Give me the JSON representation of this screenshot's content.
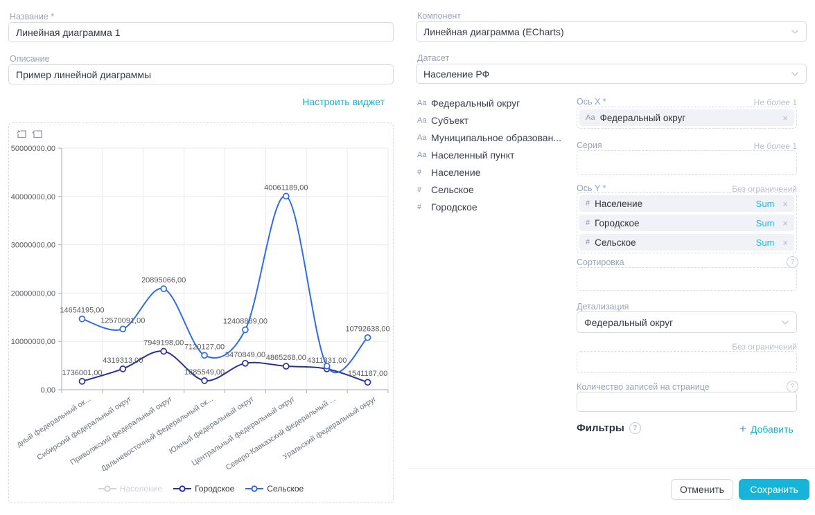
{
  "accent": "#17b3d9",
  "left": {
    "name_label": "Название *",
    "name_value": "Линейная диаграмма 1",
    "description_label": "Описание",
    "description_value": "Пример линейной диаграммы",
    "configure_link": "Настроить виджет"
  },
  "right": {
    "component_label": "Компонент",
    "component_value": "Линейная диаграмма (ECharts)",
    "dataset_label": "Датасет",
    "dataset_value": "Население РФ",
    "fields": [
      {
        "type": "Аа",
        "label": "Федеральный округ"
      },
      {
        "type": "Аа",
        "label": "Субъект"
      },
      {
        "type": "Аа",
        "label": "Муниципальное образован..."
      },
      {
        "type": "Аа",
        "label": "Населенный пункт"
      },
      {
        "type": "#",
        "label": "Население"
      },
      {
        "type": "#",
        "label": "Сельское"
      },
      {
        "type": "#",
        "label": "Городское"
      }
    ],
    "axis_x": {
      "label": "Ось X *",
      "limit": "Не более 1",
      "chips": [
        {
          "type": "Аа",
          "label": "Федеральный округ"
        }
      ]
    },
    "series_slot": {
      "label": "Серия",
      "limit": "Не более 1"
    },
    "axis_y": {
      "label": "Ось Y *",
      "limit": "Без ограничений",
      "chips": [
        {
          "type": "#",
          "label": "Население",
          "agg": "Sum"
        },
        {
          "type": "#",
          "label": "Городское",
          "agg": "Sum"
        },
        {
          "type": "#",
          "label": "Сельское",
          "agg": "Sum"
        }
      ]
    },
    "sorting_label": "Сортировка",
    "detail_label": "Детализация",
    "detail_value": "Федеральный округ",
    "limit_unbounded": "Без ограничений",
    "page_size_label": "Количество записей на странице",
    "filters_label": "Фильтры",
    "add_label": "Добавить",
    "add_plus": "+"
  },
  "footer": {
    "cancel": "Отменить",
    "save": "Сохранить"
  },
  "chart_data": {
    "type": "line",
    "smooth": true,
    "grid": true,
    "legend_position": "bottom",
    "toolbox_icons": [
      "box-zoom-icon",
      "restore-icon"
    ],
    "categories": [
      "дный федеральный ок...",
      "Сибирский федеральный округ",
      "Приволжский федеральный округ",
      "Дальневосточный федеральный ок...",
      "Южный федеральный округ",
      "Центральный федеральный округ",
      "Северо-Кавказский федеральный ...",
      "Уральский федеральный округ"
    ],
    "ylim": [
      0,
      50000000
    ],
    "y_ticks": [
      "50000000,00",
      "40000000,00",
      "30000000,00",
      "20000000,00",
      "10000000,00",
      "0,00"
    ],
    "label_suffix": ",00",
    "series": [
      {
        "name": "Население",
        "color": "#c9ccd2",
        "visible": false,
        "values": null
      },
      {
        "name": "Городское",
        "color": "#2a2e9e",
        "visible": true,
        "values": [
          1736001,
          4319313,
          7949198,
          1885549,
          5470849,
          4865268,
          4311331,
          1541187
        ],
        "hidden_label_indices": []
      },
      {
        "name": "Сельское",
        "color": "#2e6be4",
        "visible": true,
        "values": [
          14654195,
          12570091,
          20895066,
          7120127,
          12408889,
          40061189,
          4900000,
          10792638
        ],
        "hidden_label_indices": [
          6
        ]
      }
    ]
  }
}
